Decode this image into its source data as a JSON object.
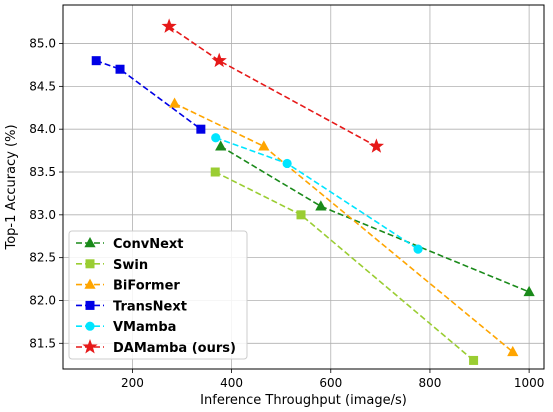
{
  "chart_data": {
    "type": "line",
    "xlabel": "Inference Throughput (image/s)",
    "ylabel": "Top-1 Accuracy (%)",
    "xlim": [
      60,
      1030
    ],
    "ylim": [
      81.2,
      85.45
    ],
    "xticks": [
      200,
      400,
      600,
      800,
      1000
    ],
    "yticks": [
      81.5,
      82.0,
      82.5,
      83.0,
      83.5,
      84.0,
      84.5,
      85.0
    ],
    "xtick_labels": [
      "200",
      "400",
      "600",
      "800",
      "1000"
    ],
    "ytick_labels": [
      "81.5",
      "82.0",
      "82.5",
      "83.0",
      "83.5",
      "84.0",
      "84.5",
      "85.0"
    ],
    "grid": true,
    "legend_position": "lower-left",
    "series": [
      {
        "name": "ConvNext",
        "color": "#1a8a1a",
        "marker": "triangle",
        "x": [
          378,
          580,
          1000
        ],
        "y": [
          83.8,
          83.1,
          82.1
        ]
      },
      {
        "name": "Swin",
        "color": "#9acd32",
        "marker": "square",
        "x": [
          367,
          540,
          888
        ],
        "y": [
          83.5,
          83.0,
          81.3
        ]
      },
      {
        "name": "BiFormer",
        "color": "#ffa500",
        "marker": "triangle",
        "x": [
          285,
          465,
          967
        ],
        "y": [
          84.3,
          83.8,
          81.4
        ]
      },
      {
        "name": "TransNext",
        "color": "#0000e6",
        "marker": "square",
        "x": [
          127,
          175,
          338
        ],
        "y": [
          84.8,
          84.7,
          84.0
        ]
      },
      {
        "name": "VMamba",
        "color": "#00e5ff",
        "marker": "circle",
        "x": [
          368,
          512,
          776
        ],
        "y": [
          83.9,
          83.6,
          82.6
        ]
      },
      {
        "name": "DAMamba (ours)",
        "color": "#e61919",
        "marker": "star",
        "x": [
          274,
          375,
          692
        ],
        "y": [
          85.2,
          84.8,
          83.8
        ]
      }
    ]
  }
}
